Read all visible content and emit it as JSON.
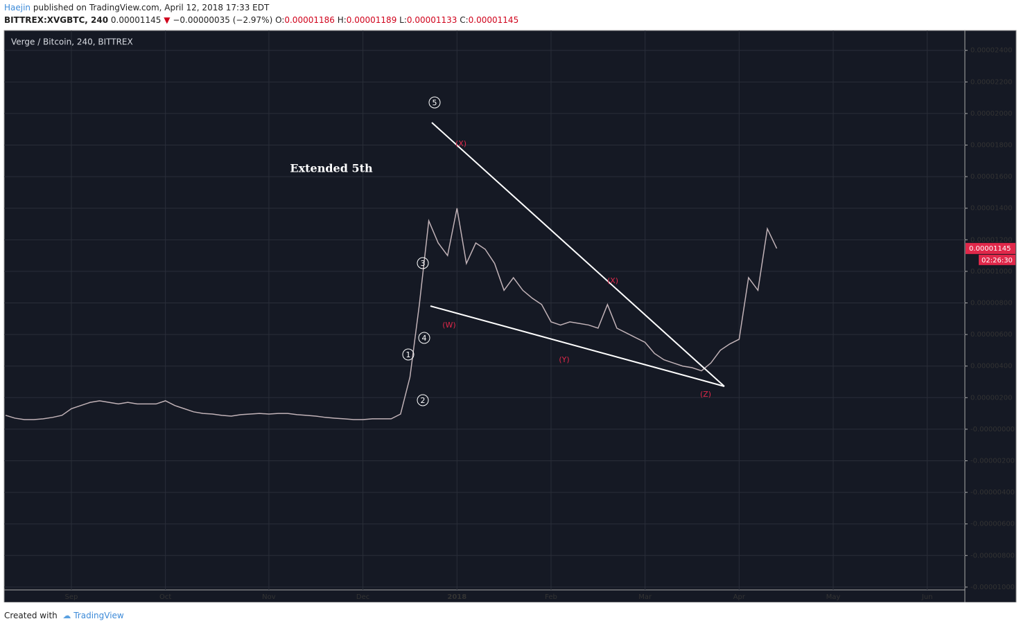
{
  "header": {
    "author": "Haejin",
    "published": "published on TradingView.com, April 12, 2018 17:33 EDT",
    "symbol": "BITTREX:XVGBTC, 240",
    "last": "0.00001145",
    "change": "−0.00000035 (−2.97%)",
    "o_label": "O:",
    "o": "0.00001186",
    "h_label": "H:",
    "h": "0.00001189",
    "l_label": "L:",
    "l": "0.00001133",
    "c_label": "C:",
    "c": "0.00001145"
  },
  "footer": {
    "created": "Created with",
    "brand": "TradingView"
  },
  "chart_data": {
    "type": "line",
    "title": "Verge / Bitcoin, 240, BITTREX",
    "categories": [
      null,
      null,
      null,
      null,
      null,
      null,
      null,
      "Sep",
      null,
      null,
      null,
      null,
      null,
      null,
      null,
      null,
      null,
      "Oct",
      null,
      null,
      null,
      null,
      null,
      null,
      null,
      null,
      null,
      null,
      "Nov",
      null,
      null,
      null,
      null,
      null,
      null,
      null,
      null,
      null,
      "Dec",
      null,
      null,
      null,
      null,
      null,
      null,
      null,
      null,
      null,
      "2018",
      null,
      null,
      null,
      null,
      null,
      null,
      null,
      null,
      null,
      "Feb",
      null,
      null,
      null,
      null,
      null,
      null,
      null,
      null,
      null,
      "Mar",
      null,
      null,
      null,
      null,
      null,
      null,
      null,
      null,
      null,
      "Apr",
      null,
      null,
      null,
      null,
      null,
      null,
      null,
      null,
      null,
      "May",
      null,
      null,
      null,
      null,
      null,
      null,
      null,
      null,
      null,
      "Jun",
      null,
      null,
      null,
      null
    ],
    "series": [
      {
        "name": "XVGBTC",
        "color": "#c2b3b8",
        "values": [
          8.8e-07,
          7e-07,
          6.1e-07,
          6.1e-07,
          6.6e-07,
          7.5e-07,
          8.8e-07,
          1.3e-06,
          1.5e-06,
          1.7e-06,
          1.8e-06,
          1.7e-06,
          1.6e-06,
          1.7e-06,
          1.6e-06,
          1.6e-06,
          1.6e-06,
          1.8e-06,
          1.5e-06,
          1.3e-06,
          1.1e-06,
          1e-06,
          9.6e-07,
          8.8e-07,
          8.3e-07,
          9.2e-07,
          9.6e-07,
          1e-06,
          9.6e-07,
          1e-06,
          1e-06,
          9.2e-07,
          8.8e-07,
          8.3e-07,
          7.5e-07,
          7e-07,
          6.6e-07,
          6.1e-07,
          6.1e-07,
          6.6e-07,
          6.6e-07,
          6.6e-07,
          9.6e-07,
          3.3e-06,
          7.9e-06,
          1.32e-05,
          1.18e-05,
          1.1e-05,
          1.4e-05,
          1.05e-05,
          1.18e-05,
          1.14e-05,
          1.05e-05,
          8.8e-06,
          9.6e-06,
          8.8e-06,
          8.3e-06,
          7.9e-06,
          6.8e-06,
          6.6e-06,
          6.8e-06,
          6.7e-06,
          6.6e-06,
          6.4e-06,
          7.9e-06,
          6.4e-06,
          6.1e-06,
          5.8e-06,
          5.5e-06,
          4.8e-06,
          4.4e-06,
          4.2e-06,
          4e-06,
          3.9e-06,
          3.7e-06,
          4.2e-06,
          5e-06,
          5.4e-06,
          5.7e-06,
          9.6e-06,
          8.8e-06,
          1.27e-05,
          1.145e-05,
          null,
          null,
          null,
          null,
          null,
          null,
          null,
          null,
          null,
          null,
          null,
          null,
          null,
          null,
          null,
          null,
          null,
          null,
          null,
          null
        ]
      }
    ],
    "ylim": [
      -1.018e-05,
      2.526e-05
    ],
    "yticks": [
      {
        "value": 2.4e-05,
        "label": "0.00002400"
      },
      {
        "value": 2.2e-05,
        "label": "0.00002200"
      },
      {
        "value": 2e-05,
        "label": "0.00002000"
      },
      {
        "value": 1.8e-05,
        "label": "0.00001800"
      },
      {
        "value": 1.6e-05,
        "label": "0.00001600"
      },
      {
        "value": 1.4e-05,
        "label": "0.00001400"
      },
      {
        "value": 1.2e-05,
        "label": "0.00001200"
      },
      {
        "value": 1e-05,
        "label": "0.00001000"
      },
      {
        "value": 8e-06,
        "label": "0.00000800"
      },
      {
        "value": 6e-06,
        "label": "0.00000600"
      },
      {
        "value": 4e-06,
        "label": "0.00000400"
      },
      {
        "value": 2e-06,
        "label": "0.00000200"
      },
      {
        "value": 0,
        "label": "-0.00000000"
      },
      {
        "value": -2e-06,
        "label": "-0.00000200"
      },
      {
        "value": -4e-06,
        "label": "-0.00000400"
      },
      {
        "value": -6e-06,
        "label": "-0.00000600"
      },
      {
        "value": -8e-06,
        "label": "-0.00000800"
      },
      {
        "value": -1e-05,
        "label": "-0.00001000"
      }
    ],
    "grid": true,
    "price_tag": "0.00001145",
    "countdown": "02:26:30",
    "annotations": [
      "5",
      "3",
      "4",
      "1",
      "2",
      "(X)",
      "(W)",
      "(Y)",
      "(X)",
      "(Z)",
      "Extended 5th"
    ]
  }
}
